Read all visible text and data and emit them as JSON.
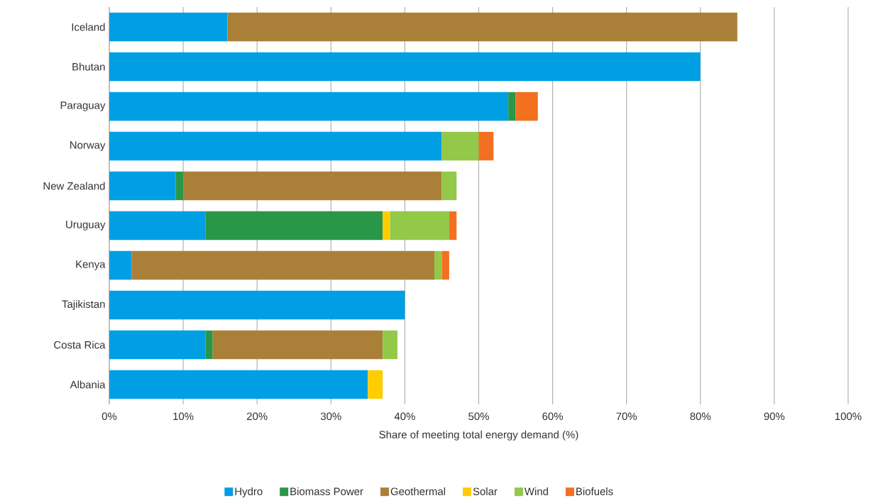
{
  "chart_data": {
    "type": "bar",
    "orientation": "horizontal",
    "stacked": true,
    "xlabel": "Share of meeting total energy demand (%)",
    "categories": [
      "Iceland",
      "Bhutan",
      "Paraguay",
      "Norway",
      "New Zealand",
      "Uruguay",
      "Kenya",
      "Tajikistan",
      "Costa Rica",
      "Albania"
    ],
    "series": [
      {
        "name": "Hydro",
        "color": "#009fe3",
        "values": [
          16,
          80,
          54,
          45,
          9,
          13,
          3,
          40,
          13,
          35
        ]
      },
      {
        "name": "Biomass Power",
        "color": "#2a9748",
        "values": [
          null,
          null,
          1,
          null,
          1,
          24,
          null,
          null,
          1,
          null
        ]
      },
      {
        "name": "Geothermal",
        "color": "#aa8039",
        "values": [
          69,
          null,
          null,
          null,
          35,
          null,
          41,
          null,
          23,
          null
        ]
      },
      {
        "name": "Solar",
        "color": "#ffcc00",
        "values": [
          null,
          null,
          null,
          null,
          null,
          1,
          null,
          null,
          null,
          2
        ]
      },
      {
        "name": "Wind",
        "color": "#93c848",
        "values": [
          null,
          null,
          null,
          5,
          2,
          8,
          1,
          null,
          2,
          null
        ]
      },
      {
        "name": "Biofuels",
        "color": "#f37021",
        "values": [
          null,
          null,
          3,
          2,
          null,
          1,
          1,
          null,
          null,
          null
        ]
      }
    ],
    "xlim": [
      0,
      100
    ],
    "xticks": [
      {
        "value": 0,
        "label": "0%"
      },
      {
        "value": 10,
        "label": "10%"
      },
      {
        "value": 20,
        "label": "20%"
      },
      {
        "value": 30,
        "label": "30%"
      },
      {
        "value": 40,
        "label": "40%"
      },
      {
        "value": 50,
        "label": "50%"
      },
      {
        "value": 60,
        "label": "60%"
      },
      {
        "value": 70,
        "label": "70%"
      },
      {
        "value": 80,
        "label": "80%"
      },
      {
        "value": 90,
        "label": "90%"
      },
      {
        "value": 100,
        "label": "100%"
      }
    ],
    "grid": "x",
    "legend": "bottom"
  }
}
